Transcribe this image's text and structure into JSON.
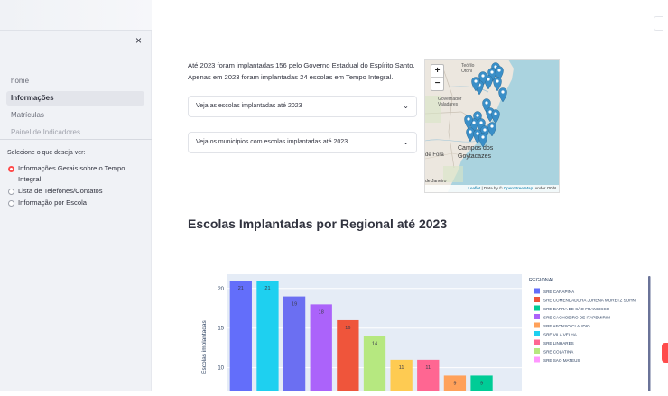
{
  "sidebar": {
    "close_label": "×",
    "nav": [
      {
        "label": "home",
        "state": "normal"
      },
      {
        "label": "Informações",
        "state": "active"
      },
      {
        "label": "Matrículas",
        "state": "normal"
      },
      {
        "label": "Painel de Indicadores",
        "state": "faded"
      }
    ],
    "radio_title": "Selecione o que deseja ver:",
    "radio_options": [
      {
        "label": "Informações Gerais sobre o Tempo Integral",
        "selected": true
      },
      {
        "label": "Lista de Telefones/Contatos",
        "selected": false
      },
      {
        "label": "Informação por Escola",
        "selected": false
      }
    ]
  },
  "main": {
    "intro_line1": "Até 2023 foram implantadas 156 pelo Governo Estadual do Espírito Santo.",
    "intro_line2": "Apenas em 2023 foram implantadas 24 escolas em Tempo Integral.",
    "expander1": "Veja as escolas implantadas até 2023",
    "expander2": "Veja os municípios com escolas implantadas até 2023",
    "section_title": "Escolas Implantadas por Regional até 2023"
  },
  "map": {
    "zoom_in": "+",
    "zoom_out": "−",
    "place_labels": [
      "Teófilo Otoni",
      "Governador Valadares",
      "Campos dos Goytacazes",
      "de Fora",
      "de Janeiro"
    ],
    "attribution_prefix": "Leaflet",
    "attribution_middle": " | Data by © ",
    "attribution_osm": "OpenStreetMap",
    "attribution_suffix": ", under ODbL."
  },
  "chart_data": {
    "type": "bar",
    "ylabel": "Escolas implantadas",
    "yticks": [
      10,
      15,
      20
    ],
    "ylim_visible": [
      7,
      21.8
    ],
    "legend_title": "REGIONAL",
    "legend_placement": "right",
    "series": [
      {
        "name": "SRE CARAPINA",
        "value": 21,
        "color": "#636efa"
      },
      {
        "name": "SRE COMENDADORA JURENA MORETZ SOHN",
        "value": 21,
        "color": "#1ed0f0"
      },
      {
        "name": "SRE BARRA DE SÃO FRANCISCO",
        "value": 19,
        "color": "#6b6ff2"
      },
      {
        "name": "SRE CACHOEIRO DE ITAPEMIRIM",
        "value": 18,
        "color": "#ab63fa"
      },
      {
        "name": "SRE AFONSO CLAUDIO",
        "value": 16,
        "color": "#ef553b"
      },
      {
        "name": "SRE VILA VELHA",
        "value": 14,
        "color": "#b6e880"
      },
      {
        "name": "SRE LINHARES",
        "value": 11,
        "color": "#fecb52"
      },
      {
        "name": "SRE COLATINA",
        "value": 11,
        "color": "#ff6692"
      },
      {
        "name": "SRE SAO MATEUS",
        "value": 9,
        "color": "#ffa15a"
      },
      {
        "name": "",
        "value": 9,
        "color": "#00cc96"
      },
      {
        "name": "",
        "value": 7,
        "color": "#ff97ff"
      }
    ],
    "legend_colors": [
      "#636efa",
      "#ef553b",
      "#00cc96",
      "#ab63fa",
      "#ffa15a",
      "#1ed0f0",
      "#ff6692",
      "#b6e880",
      "#ff97ff"
    ]
  }
}
